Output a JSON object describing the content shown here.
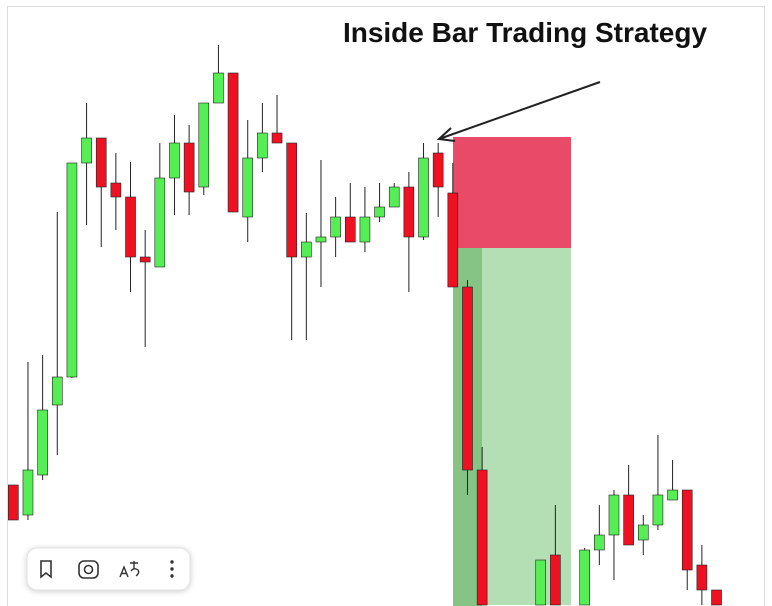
{
  "chart_data": {
    "type": "candlestick",
    "title": "Inside Bar Trading Strategy",
    "categories": [
      null,
      null,
      null,
      null,
      null,
      null,
      null,
      null,
      null,
      null,
      null,
      null,
      null,
      null,
      null,
      null,
      null,
      null,
      null,
      null,
      null,
      null,
      null,
      null,
      null,
      null,
      null,
      null,
      null,
      null,
      null,
      null,
      null,
      null,
      null,
      null,
      null,
      null,
      null,
      null,
      null,
      null,
      null,
      null,
      null,
      null,
      null,
      null,
      null
    ],
    "open": [
      121,
      91,
      131,
      201,
      229,
      443,
      468,
      423,
      409,
      349,
      339,
      428,
      463,
      419,
      503,
      533,
      389,
      448,
      473,
      463,
      349,
      364,
      369,
      389,
      364,
      389,
      399,
      419,
      369,
      453,
      413,
      319,
      136,
      null,
      null,
      null,
      1,
      51,
      null,
      1,
      56,
      71,
      111,
      66,
      81,
      106,
      116,
      41,
      16
    ],
    "high": [
      121,
      244,
      251,
      394,
      443,
      503,
      468,
      453,
      444,
      376,
      463,
      491,
      481,
      503,
      561,
      533,
      486,
      503,
      511,
      463,
      393,
      446,
      409,
      423,
      419,
      423,
      423,
      434,
      463,
      463,
      443,
      326,
      159,
      null,
      null,
      null,
      46,
      101,
      null,
      58,
      101,
      116,
      141,
      91,
      171,
      146,
      116,
      61,
      16
    ],
    "low": [
      86,
      86,
      126,
      151,
      228,
      381,
      359,
      376,
      314,
      259,
      339,
      391,
      391,
      411,
      503,
      394,
      364,
      434,
      463,
      266,
      266,
      319,
      349,
      364,
      354,
      384,
      399,
      314,
      366,
      389,
      319,
      111,
      1,
      null,
      null,
      null,
      1,
      1,
      null,
      1,
      41,
      26,
      61,
      51,
      76,
      106,
      16,
      1,
      1
    ],
    "close": [
      86,
      136,
      196,
      229,
      443,
      468,
      419,
      409,
      349,
      344,
      428,
      463,
      414,
      503,
      533,
      394,
      448,
      473,
      463,
      349,
      364,
      369,
      389,
      364,
      389,
      399,
      419,
      369,
      448,
      419,
      319,
      136,
      1,
      null,
      null,
      null,
      46,
      1,
      null,
      56,
      71,
      111,
      61,
      81,
      111,
      116,
      36,
      16,
      1
    ],
    "up_color": "#55ee55",
    "down_color": "#ee1122",
    "ylim": [
      0,
      606
    ],
    "position": {
      "stop_loss": 469,
      "entry": 358,
      "target": 1,
      "stop_color": "#e84a67",
      "target_color": "#b4dfb4"
    }
  }
}
